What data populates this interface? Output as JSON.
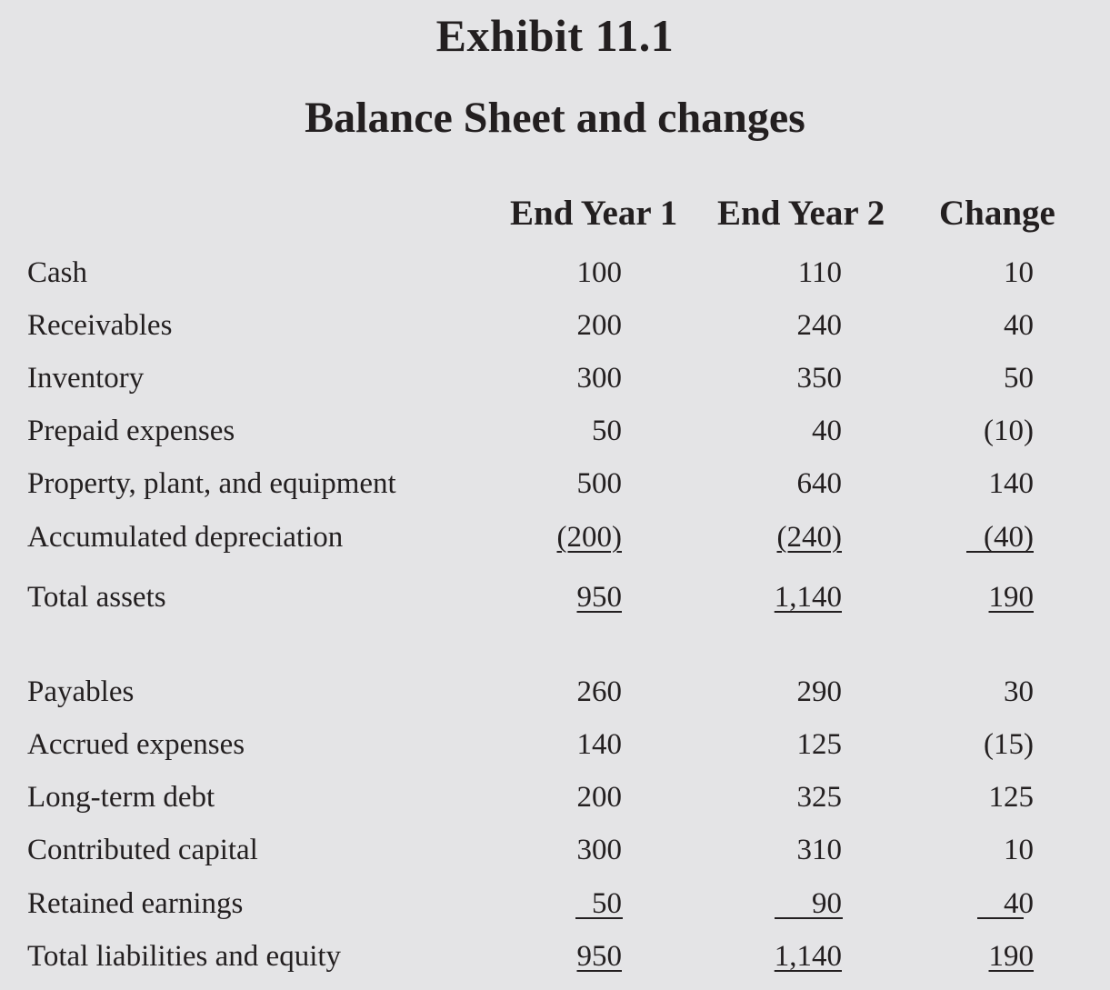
{
  "exhibit_title": "Exhibit 11.1",
  "exhibit_subtitle": "Balance Sheet and changes",
  "columns": [
    "End Year 1",
    "End Year 2",
    "Change"
  ],
  "assets": [
    {
      "label": "Cash",
      "y1": "100",
      "y2": "110",
      "chg": "10"
    },
    {
      "label": "Receivables",
      "y1": "200",
      "y2": "240",
      "chg": "40"
    },
    {
      "label": "Inventory",
      "y1": "300",
      "y2": "350",
      "chg": "50"
    },
    {
      "label": "Prepaid expenses",
      "y1": "50",
      "y2": "40",
      "chg": "(10)"
    },
    {
      "label": "Property, plant, and equipment",
      "y1": "500",
      "y2": "640",
      "chg": "140"
    },
    {
      "label": "Accumulated depreciation",
      "y1": "(200)",
      "y2": "(240)",
      "chg": "(40)"
    }
  ],
  "total_assets": {
    "label": "Total assets",
    "y1": "950",
    "y2": "1,140",
    "chg": "190"
  },
  "liabilities_equity": [
    {
      "label": "Payables",
      "y1": "260",
      "y2": "290",
      "chg": "30"
    },
    {
      "label": "Accrued expenses",
      "y1": "140",
      "y2": "125",
      "chg": "(15)"
    },
    {
      "label": "Long-term debt",
      "y1": "200",
      "y2": "325",
      "chg": "125"
    },
    {
      "label": "Contributed capital",
      "y1": "300",
      "y2": "310",
      "chg": "10"
    },
    {
      "label": "Retained earnings",
      "y1": "50",
      "y2": "90",
      "chg": "40"
    }
  ],
  "total_liabilities_equity": {
    "label": "Total liabilities and equity",
    "y1": "950",
    "y2": "1,140",
    "chg": "190"
  }
}
